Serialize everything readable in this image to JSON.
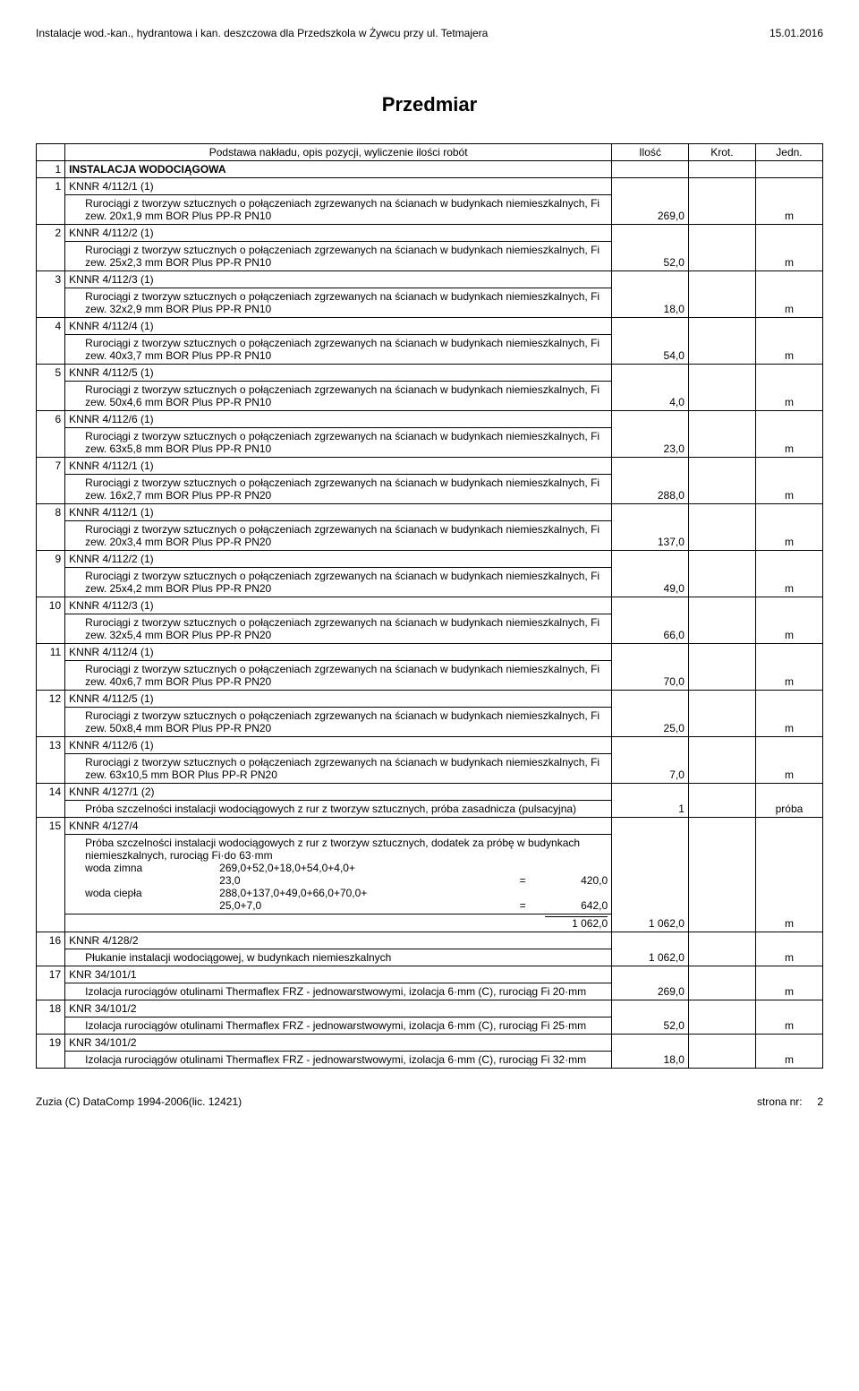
{
  "header": {
    "left": "Instalacje wod.-kan., hydrantowa i kan. deszczowa dla Przedszkola w Żywcu przy ul. Tetmajera",
    "right": "15.01.2016"
  },
  "title": "Przedmiar",
  "columns": {
    "c2": "Podstawa nakładu, opis pozycji, wyliczenie ilości robót",
    "c3": "Ilość",
    "c4": "Krot.",
    "c5": "Jedn."
  },
  "section": {
    "num": "1",
    "title": "INSTALACJA WODOCIĄGOWA"
  },
  "rows": [
    {
      "n": "1",
      "code": "KNNR 4/112/1 (1)",
      "desc": "Rurociągi z tworzyw sztucznych o połączeniach zgrzewanych na ścianach w budynkach niemieszkalnych, Fi zew. 20x1,9 mm BOR Plus PP-R PN10",
      "qty": "269,0",
      "unit": "m"
    },
    {
      "n": "2",
      "code": "KNNR 4/112/2 (1)",
      "desc": "Rurociągi z tworzyw sztucznych o połączeniach zgrzewanych na ścianach w budynkach niemieszkalnych, Fi zew. 25x2,3 mm BOR Plus PP-R PN10",
      "qty": "52,0",
      "unit": "m"
    },
    {
      "n": "3",
      "code": "KNNR 4/112/3 (1)",
      "desc": "Rurociągi z tworzyw sztucznych o połączeniach zgrzewanych na ścianach w budynkach niemieszkalnych, Fi zew. 32x2,9 mm BOR Plus PP-R PN10",
      "qty": "18,0",
      "unit": "m"
    },
    {
      "n": "4",
      "code": "KNNR 4/112/4 (1)",
      "desc": "Rurociągi z tworzyw sztucznych o połączeniach zgrzewanych na ścianach w budynkach niemieszkalnych, Fi zew. 40x3,7 mm BOR Plus PP-R PN10",
      "qty": "54,0",
      "unit": "m"
    },
    {
      "n": "5",
      "code": "KNNR 4/112/5 (1)",
      "desc": "Rurociągi z tworzyw sztucznych o połączeniach zgrzewanych na ścianach w budynkach niemieszkalnych, Fi zew. 50x4,6 mm BOR Plus PP-R PN10",
      "qty": "4,0",
      "unit": "m"
    },
    {
      "n": "6",
      "code": "KNNR 4/112/6 (1)",
      "desc": "Rurociągi z tworzyw sztucznych o połączeniach zgrzewanych na ścianach w budynkach niemieszkalnych, Fi zew. 63x5,8 mm BOR Plus PP-R PN10",
      "qty": "23,0",
      "unit": "m"
    },
    {
      "n": "7",
      "code": "KNNR 4/112/1 (1)",
      "desc": "Rurociągi z tworzyw sztucznych o połączeniach zgrzewanych na ścianach w budynkach niemieszkalnych, Fi zew. 16x2,7 mm BOR Plus PP-R PN20",
      "qty": "288,0",
      "unit": "m"
    },
    {
      "n": "8",
      "code": "KNNR 4/112/1 (1)",
      "desc": "Rurociągi z tworzyw sztucznych o połączeniach zgrzewanych na ścianach w budynkach niemieszkalnych, Fi zew. 20x3,4 mm BOR Plus PP-R PN20",
      "qty": "137,0",
      "unit": "m"
    },
    {
      "n": "9",
      "code": "KNNR 4/112/2 (1)",
      "desc": "Rurociągi z tworzyw sztucznych o połączeniach zgrzewanych na ścianach w budynkach niemieszkalnych, Fi zew. 25x4,2 mm BOR Plus PP-R PN20",
      "qty": "49,0",
      "unit": "m"
    },
    {
      "n": "10",
      "code": "KNNR 4/112/3 (1)",
      "desc": "Rurociągi z tworzyw sztucznych o połączeniach zgrzewanych na ścianach w budynkach niemieszkalnych, Fi zew. 32x5,4 mm BOR Plus PP-R PN20",
      "qty": "66,0",
      "unit": "m"
    },
    {
      "n": "11",
      "code": "KNNR 4/112/4 (1)",
      "desc": "Rurociągi z tworzyw sztucznych o połączeniach zgrzewanych na ścianach w budynkach niemieszkalnych, Fi zew. 40x6,7 mm BOR Plus PP-R PN20",
      "qty": "70,0",
      "unit": "m"
    },
    {
      "n": "12",
      "code": "KNNR 4/112/5 (1)",
      "desc": "Rurociągi z tworzyw sztucznych o połączeniach zgrzewanych na ścianach w budynkach niemieszkalnych, Fi zew. 50x8,4 mm BOR Plus PP-R PN20",
      "qty": "25,0",
      "unit": "m"
    },
    {
      "n": "13",
      "code": "KNNR 4/112/6 (1)",
      "desc": "Rurociągi z tworzyw sztucznych o połączeniach zgrzewanych na ścianach w budynkach niemieszkalnych, Fi zew. 63x10,5 mm BOR Plus PP-R PN20",
      "qty": "7,0",
      "unit": "m"
    },
    {
      "n": "14",
      "code": "KNNR 4/127/1 (2)",
      "desc": "Próba szczelności instalacji wodociągowych z rur z tworzyw sztucznych, próba zasadnicza (pulsacyjna)",
      "qty": "1",
      "unit": "próba"
    }
  ],
  "row15": {
    "n": "15",
    "code": "KNNR 4/127/4",
    "desc": "Próba szczelności instalacji wodociągowych z rur z tworzyw sztucznych, dodatek za próbę w budynkach niemieszkalnych, rurociąg Fi·do 63·mm",
    "calc": [
      {
        "label": "woda zimna",
        "expr1": "269,0+52,0+18,0+54,0+4,0+",
        "expr2": "23,0",
        "eq": "=",
        "res": "420,0"
      },
      {
        "label": "woda ciepła",
        "expr1": "288,0+137,0+49,0+66,0+70,0+",
        "expr2": "25,0+7,0",
        "eq": "=",
        "res": "642,0"
      }
    ],
    "sum_inner": "1 062,0",
    "qty": "1 062,0",
    "unit": "m"
  },
  "rows2": [
    {
      "n": "16",
      "code": "KNNR 4/128/2",
      "desc": "Płukanie instalacji wodociągowej, w budynkach niemieszkalnych",
      "qty": "1 062,0",
      "unit": "m"
    },
    {
      "n": "17",
      "code": "KNR 34/101/1",
      "desc": "Izolacja rurociągów otulinami Thermaflex FRZ - jednowarstwowymi, izolacja 6·mm (C), rurociąg Fi 20·mm",
      "qty": "269,0",
      "unit": "m"
    },
    {
      "n": "18",
      "code": "KNR 34/101/2",
      "desc": "Izolacja rurociągów otulinami Thermaflex FRZ - jednowarstwowymi, izolacja 6·mm (C), rurociąg Fi 25·mm",
      "qty": "52,0",
      "unit": "m"
    },
    {
      "n": "19",
      "code": "KNR 34/101/2",
      "desc": "Izolacja rurociągów otulinami Thermaflex FRZ - jednowarstwowymi, izolacja 6·mm (C), rurociąg Fi 32·mm",
      "qty": "18,0",
      "unit": "m"
    }
  ],
  "footer": {
    "left": "Zuzia (C) DataComp 1994-2006(lic. 12421)",
    "right_label": "strona nr:",
    "right_num": "2"
  }
}
